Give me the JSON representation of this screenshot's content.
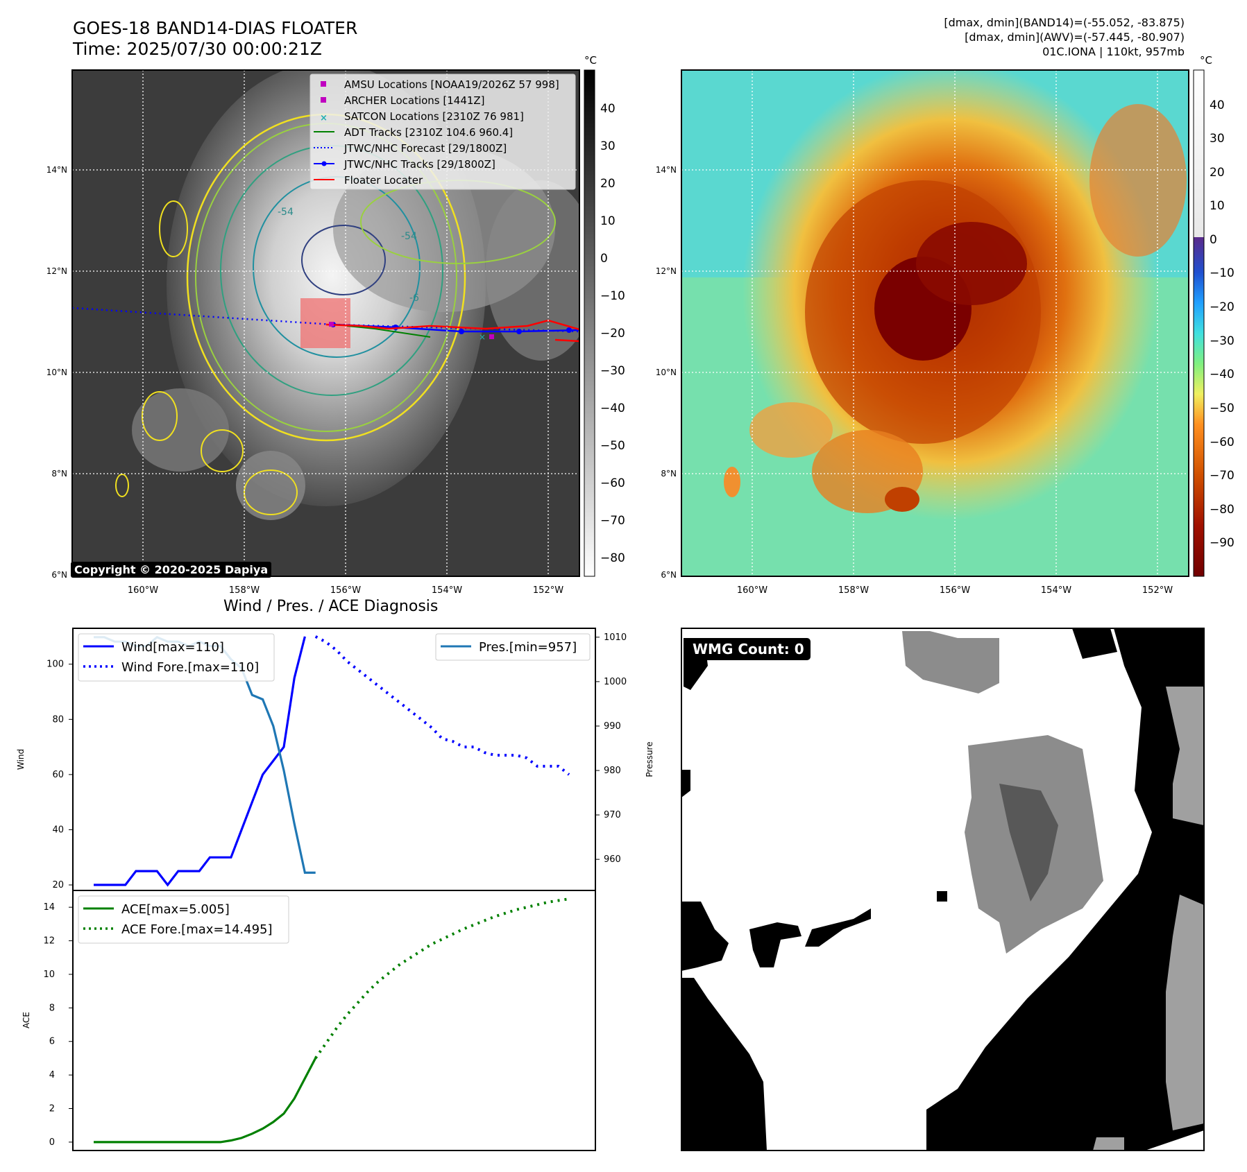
{
  "header": {
    "title_line1": "GOES-18 BAND14-DIAS FLOATER",
    "title_line2": "Time: 2025/07/30 00:00:21Z",
    "info_line1": "[dmax, dmin](BAND14)=(-55.052, -83.875)",
    "info_line2": "[dmax, dmin](AWV)=(-57.445, -80.907)",
    "info_line3": "01C.IONA | 110kt, 957mb"
  },
  "copyright": "Copyright © 2020-2025 Dapiya",
  "colorbar_unit": "°C",
  "map_axes": {
    "lat_ticks": [
      "14°N",
      "12°N",
      "10°N",
      "8°N",
      "6°N"
    ],
    "lon_ticks": [
      "160°W",
      "158°W",
      "156°W",
      "154°W",
      "152°W"
    ]
  },
  "colorbar_left_ticks": [
    "40",
    "30",
    "20",
    "10",
    "0",
    "−10",
    "−20",
    "−30",
    "−40",
    "−50",
    "−60",
    "−70",
    "−80"
  ],
  "colorbar_right_ticks": [
    "40",
    "30",
    "20",
    "10",
    "0",
    "−10",
    "−20",
    "−30",
    "−40",
    "−50",
    "−60",
    "−70",
    "−80",
    "−90"
  ],
  "contour_labels": [
    "-54",
    "-54",
    "-6"
  ],
  "legend_map": [
    {
      "label": "AMSU Locations [NOAA19/2026Z 57 998]",
      "color": "#c000c0",
      "marker": "square"
    },
    {
      "label": "ARCHER Locations [1441Z]",
      "color": "#c000c0",
      "marker": "square"
    },
    {
      "label": "SATCON Locations [2310Z 76 981]",
      "color": "#20b0b0",
      "marker": "x"
    },
    {
      "label": "ADT Tracks [2310Z 104.6 960.4]",
      "color": "#008000",
      "marker": "line"
    },
    {
      "label": "JTWC/NHC Forecast [29/1800Z]",
      "color": "#0000ff",
      "marker": "dotted"
    },
    {
      "label": "JTWC/NHC Tracks [29/1800Z]",
      "color": "#0000ff",
      "marker": "line-dot"
    },
    {
      "label": "Floater Locater",
      "color": "#ff0000",
      "marker": "line"
    }
  ],
  "diagnosis_title": "Wind / Pres. / ACE Diagnosis",
  "wmg_label": "WMG Count: 0",
  "chart_data": [
    {
      "type": "line",
      "title": "",
      "xlabel": "",
      "ylabel": "Wind",
      "ylabel_right": "Pressure",
      "ylim": [
        18,
        113
      ],
      "ylim_right": [
        953,
        1012
      ],
      "yticks": [
        20,
        40,
        60,
        80,
        100
      ],
      "yticks_right": [
        960,
        970,
        980,
        990,
        1000,
        1010
      ],
      "legend_left": [
        "Wind[max=110]",
        "Wind Fore.[max=110]"
      ],
      "legend_right": [
        "Pres.[min=957]"
      ],
      "series": [
        {
          "name": "Wind[max=110]",
          "color": "#0000ff",
          "style": "solid",
          "x": [
            0,
            1,
            2,
            3,
            4,
            5,
            6,
            7,
            8,
            9,
            10,
            11,
            12,
            13,
            14,
            15,
            16,
            17,
            18,
            19,
            20
          ],
          "values": [
            20,
            20,
            20,
            20,
            25,
            25,
            25,
            20,
            25,
            25,
            25,
            30,
            30,
            30,
            40,
            50,
            60,
            65,
            70,
            95,
            110
          ]
        },
        {
          "name": "Wind Fore.[max=110]",
          "color": "#0000ff",
          "style": "dotted",
          "x": [
            21,
            22,
            23,
            24,
            25,
            26,
            27,
            28,
            29,
            30,
            31,
            32,
            33,
            34,
            35,
            36,
            37,
            38,
            39,
            40,
            41,
            42,
            43,
            44,
            45
          ],
          "values": [
            110,
            108,
            105,
            101,
            98,
            95,
            92,
            89,
            86,
            83,
            80,
            77,
            73,
            72,
            70,
            70,
            68,
            67,
            67,
            67,
            66,
            63,
            63,
            63,
            60
          ]
        },
        {
          "name": "Pres.[min=957]",
          "color": "#1f77b4",
          "style": "solid",
          "x": [
            0,
            1,
            2,
            3,
            4,
            5,
            6,
            7,
            8,
            9,
            10,
            11,
            12,
            13,
            14,
            15,
            16,
            17,
            18,
            19,
            20,
            21
          ],
          "values": [
            1010,
            1010,
            1009,
            1009,
            1008,
            1008,
            1010,
            1009,
            1009,
            1008,
            1009,
            1008,
            1008,
            1005,
            1003,
            997,
            996,
            990,
            980,
            968,
            957,
            957
          ]
        }
      ]
    },
    {
      "type": "line",
      "title": "",
      "xlabel": "",
      "ylabel": "ACE",
      "ylim": [
        -0.5,
        15
      ],
      "yticks": [
        0,
        2,
        4,
        6,
        8,
        10,
        12,
        14
      ],
      "legend": [
        "ACE[max=5.005]",
        "ACE Fore.[max=14.495]"
      ],
      "series": [
        {
          "name": "ACE[max=5.005]",
          "color": "#008000",
          "style": "solid",
          "x": [
            0,
            2,
            4,
            6,
            8,
            10,
            12,
            13,
            14,
            15,
            16,
            17,
            18,
            19,
            20,
            21
          ],
          "values": [
            0,
            0,
            0,
            0,
            0,
            0,
            0,
            0.1,
            0.25,
            0.5,
            0.8,
            1.2,
            1.7,
            2.6,
            3.8,
            5.005
          ]
        },
        {
          "name": "ACE Fore.[max=14.495]",
          "color": "#008000",
          "style": "dotted",
          "x": [
            21,
            22,
            23,
            24,
            25,
            26,
            27,
            28,
            29,
            30,
            31,
            32,
            33,
            34,
            35,
            36,
            37,
            38,
            39,
            40,
            41,
            42,
            43,
            44,
            45
          ],
          "values": [
            5.005,
            5.9,
            6.8,
            7.6,
            8.3,
            9.0,
            9.6,
            10.1,
            10.6,
            11.0,
            11.4,
            11.8,
            12.1,
            12.4,
            12.7,
            12.95,
            13.2,
            13.45,
            13.65,
            13.85,
            14.0,
            14.15,
            14.3,
            14.4,
            14.495
          ]
        }
      ]
    }
  ]
}
